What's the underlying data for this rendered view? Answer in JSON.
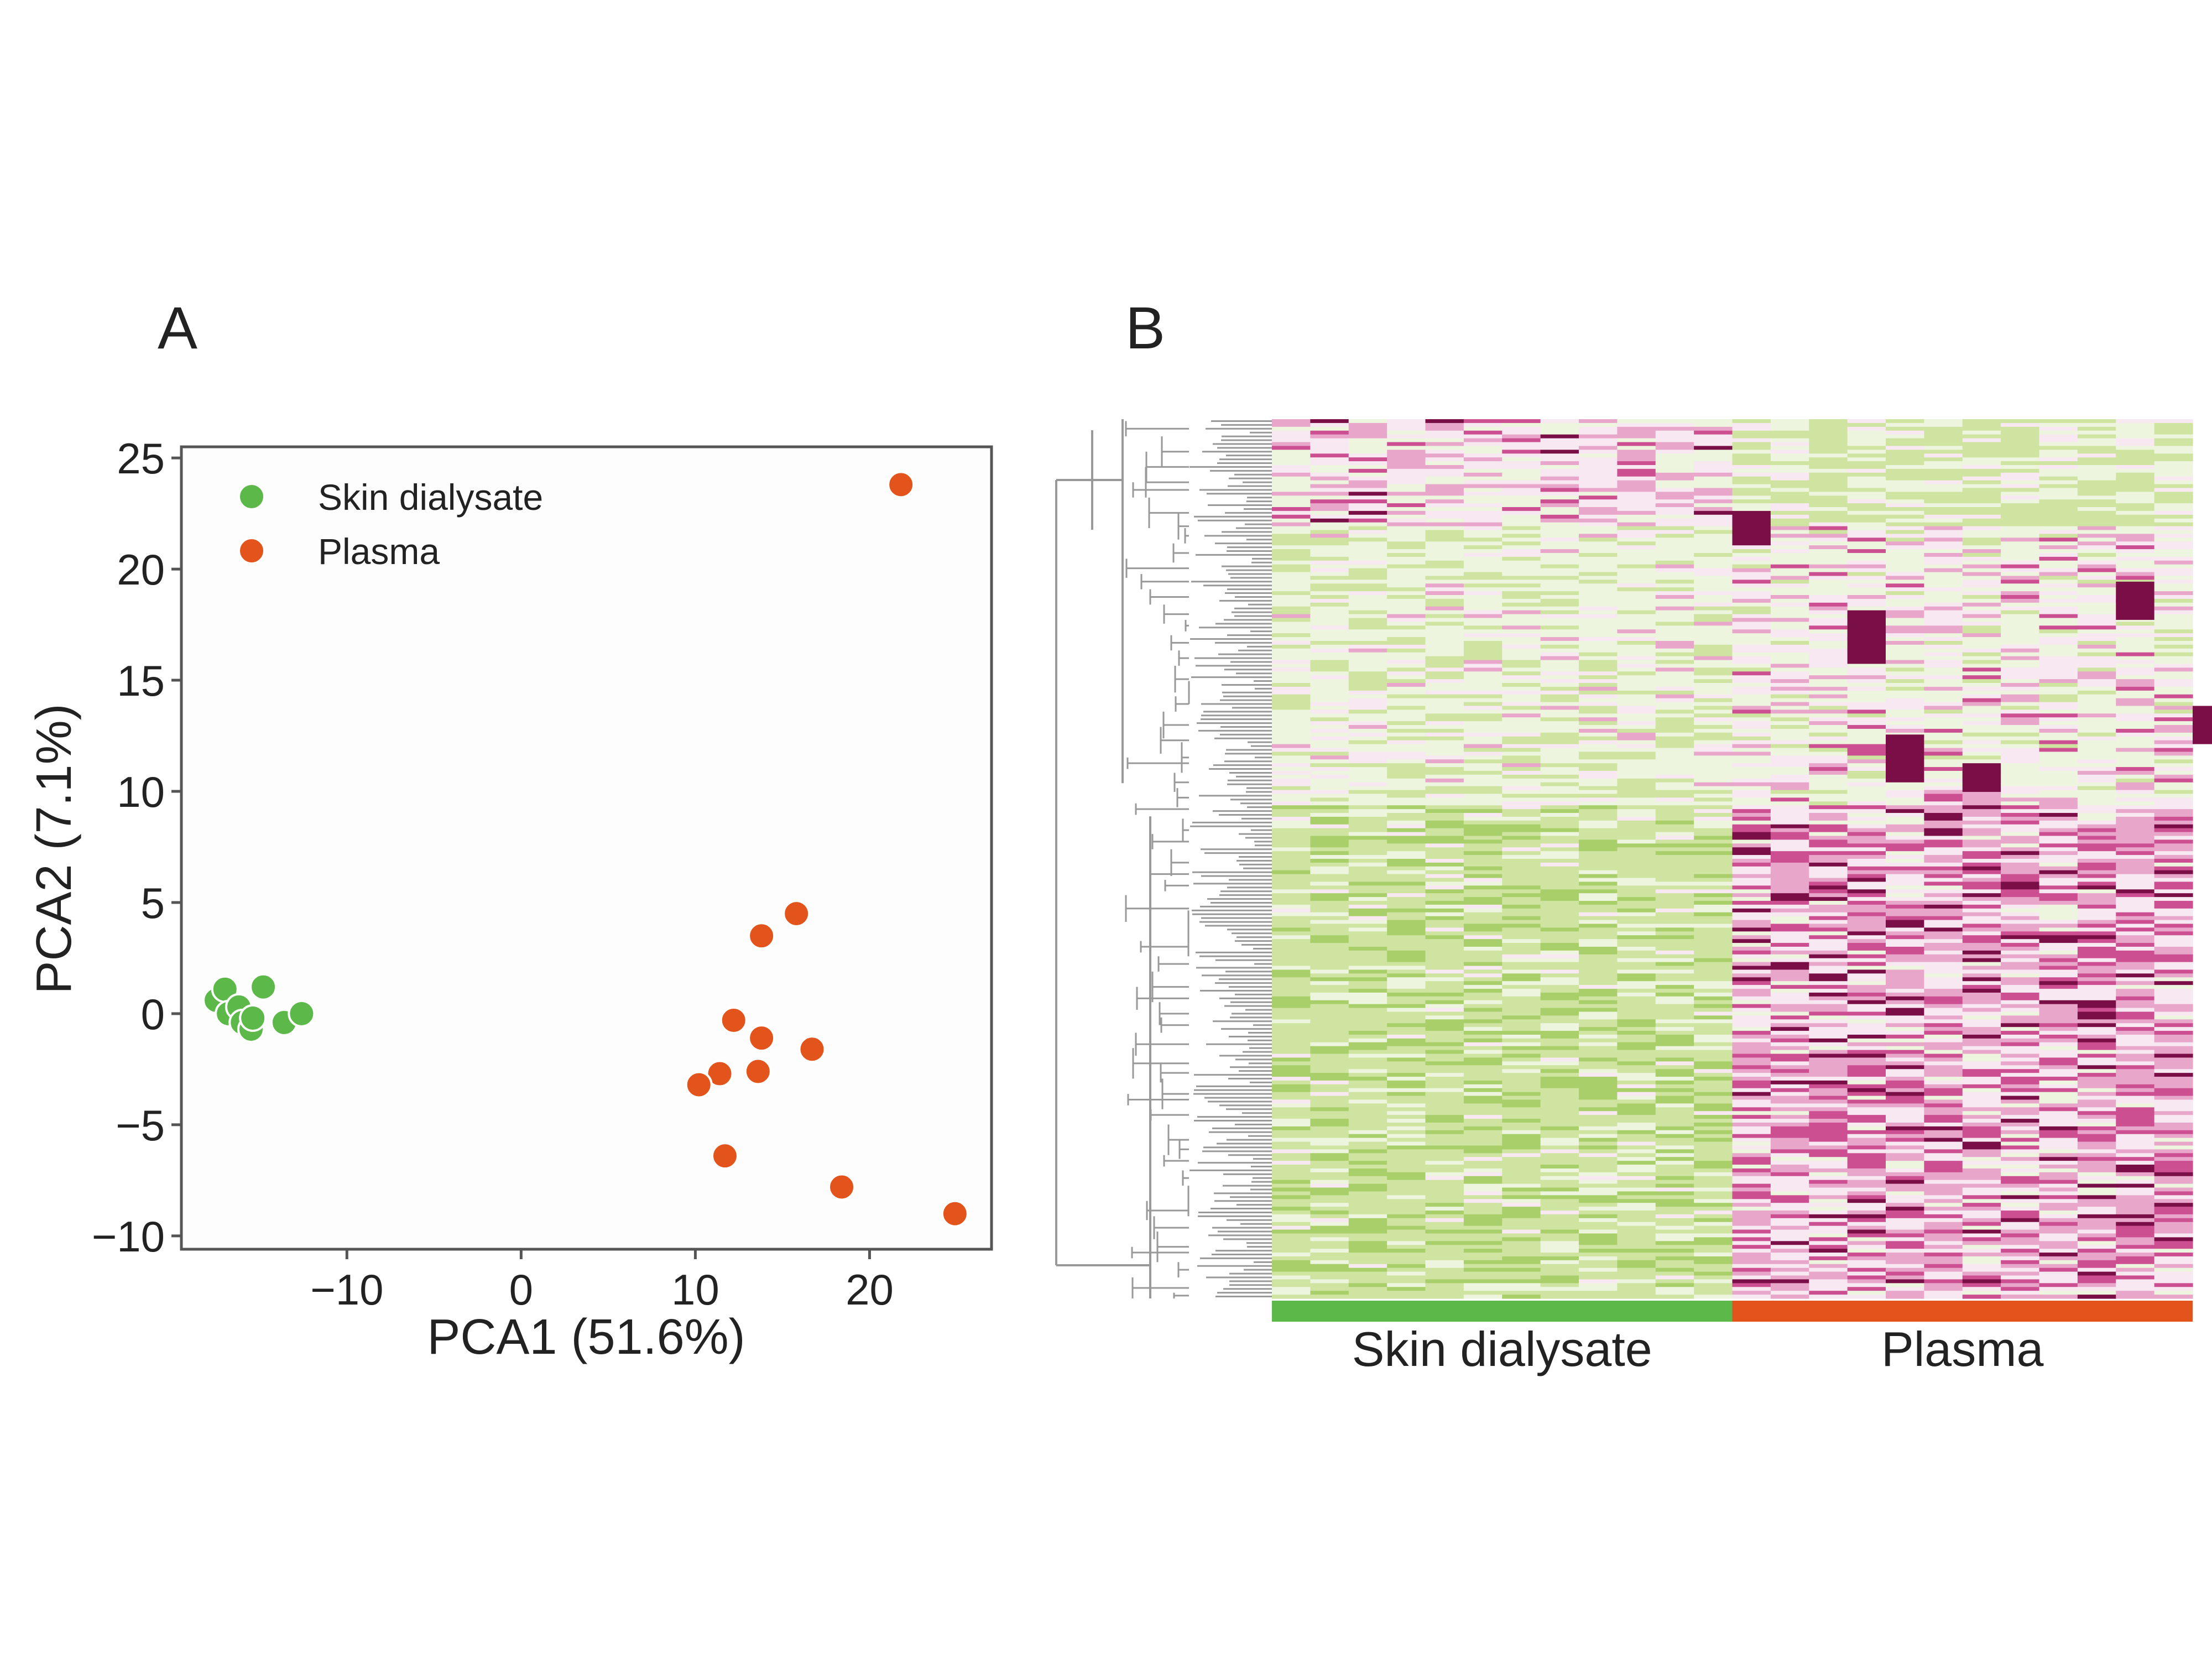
{
  "panels": {
    "a_label": "A",
    "b_label": "B"
  },
  "chart_data": [
    {
      "type": "scatter",
      "panel": "A",
      "title": "",
      "xlabel": "PCA1 (51.6%)",
      "ylabel": "PCA2 (7.1%)",
      "xlim": [
        -19.5,
        27
      ],
      "ylim": [
        -10.6,
        25.5
      ],
      "xticks": [
        -10,
        0,
        10,
        20
      ],
      "yticks": [
        25,
        20,
        15,
        10,
        5,
        0,
        -5,
        -10
      ],
      "xtick_labels": [
        "−10",
        "0",
        "10",
        "20"
      ],
      "ytick_labels": [
        "25",
        "20",
        "15",
        "10",
        "5",
        "0",
        "−5",
        "−10"
      ],
      "grid": false,
      "legend": "top-left",
      "series": [
        {
          "name": "Skin dialysate",
          "color": "#5cb848",
          "points": [
            {
              "x": -17.5,
              "y": 0.6
            },
            {
              "x": -17.0,
              "y": 1.1
            },
            {
              "x": -16.8,
              "y": 0.0
            },
            {
              "x": -16.2,
              "y": 0.3
            },
            {
              "x": -16.0,
              "y": -0.4
            },
            {
              "x": -15.5,
              "y": -0.7
            },
            {
              "x": -15.4,
              "y": -0.2
            },
            {
              "x": -14.8,
              "y": 1.2
            },
            {
              "x": -13.6,
              "y": -0.4
            },
            {
              "x": -12.6,
              "y": 0.0
            }
          ]
        },
        {
          "name": "Plasma",
          "color": "#e2541c",
          "points": [
            {
              "x": 21.8,
              "y": 23.8
            },
            {
              "x": 15.8,
              "y": 4.5
            },
            {
              "x": 13.8,
              "y": 3.5
            },
            {
              "x": 12.2,
              "y": -0.3
            },
            {
              "x": 13.8,
              "y": -1.1
            },
            {
              "x": 16.7,
              "y": -1.6
            },
            {
              "x": 11.4,
              "y": -2.7
            },
            {
              "x": 13.6,
              "y": -2.6
            },
            {
              "x": 10.2,
              "y": -3.2
            },
            {
              "x": 11.7,
              "y": -6.4
            },
            {
              "x": 18.4,
              "y": -7.8
            },
            {
              "x": 24.9,
              "y": -9.0
            }
          ]
        }
      ]
    },
    {
      "type": "heatmap",
      "panel": "B",
      "title": "",
      "groups": [
        {
          "name": "Skin dialysate",
          "color": "#5cb848",
          "columns": 12
        },
        {
          "name": "Plasma",
          "color": "#e2541c",
          "columns": 12
        }
      ],
      "color_scale": [
        "#a9cf6a",
        "#cfe4a0",
        "#eef5df",
        "#f7e8f1",
        "#e9a6cb",
        "#cc4f91",
        "#7a0e46"
      ],
      "dendrogram_color": "#999999",
      "rows": 230
    }
  ]
}
